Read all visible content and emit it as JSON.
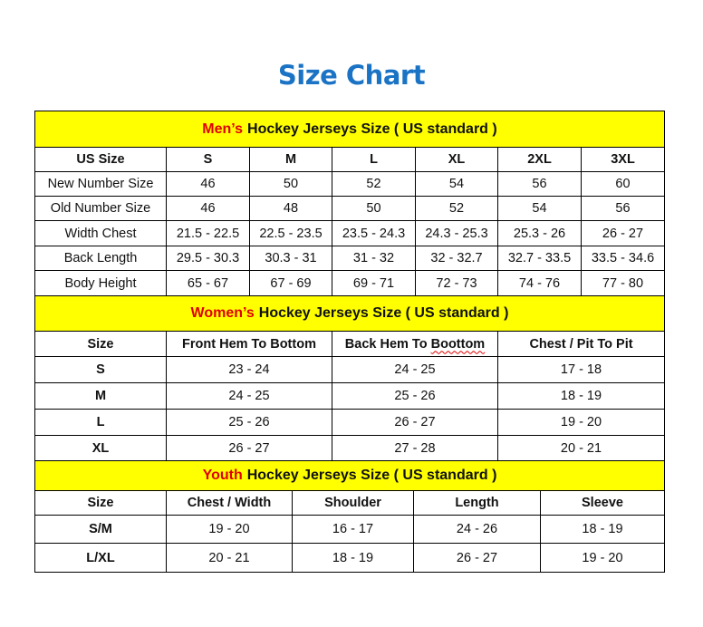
{
  "title": "Size Chart",
  "colors": {
    "title": "#1a73c4",
    "band": "#ffff00",
    "highlight": "#e00000"
  },
  "sections": [
    {
      "key": "men",
      "highlight": "Men’s",
      "heading": "Hockey Jerseys Size ( US standard )",
      "headers": [
        "US Size",
        "S",
        "M",
        "L",
        "XL",
        "2XL",
        "3XL"
      ],
      "rows": [
        [
          "New Number Size",
          "46",
          "50",
          "52",
          "54",
          "56",
          "60"
        ],
        [
          "Old Number Size",
          "46",
          "48",
          "50",
          "52",
          "54",
          "56"
        ],
        [
          "Width Chest",
          "21.5 - 22.5",
          "22.5 - 23.5",
          "23.5 - 24.3",
          "24.3 - 25.3",
          "25.3 - 26",
          "26 - 27"
        ],
        [
          "Back Length",
          "29.5 - 30.3",
          "30.3 - 31",
          "31 - 32",
          "32 - 32.7",
          "32.7 - 33.5",
          "33.5 - 34.6"
        ],
        [
          "Body Height",
          "65 - 67",
          "67 - 69",
          "69 - 71",
          "72 - 73",
          "74 - 76",
          "77 - 80"
        ]
      ]
    },
    {
      "key": "women",
      "highlight": "Women’s",
      "heading": "Hockey Jerseys Size ( US standard )",
      "headers": [
        "Size",
        "Front Hem To Bottom",
        "Back Hem To Boottom",
        "Chest / Pit To Pit"
      ],
      "rows": [
        [
          "S",
          "23 - 24",
          "24 - 25",
          "17 - 18"
        ],
        [
          "M",
          "24 - 25",
          "25 - 26",
          "18 - 19"
        ],
        [
          "L",
          "25 - 26",
          "26 - 27",
          "19 - 20"
        ],
        [
          "XL",
          "26 - 27",
          "27 - 28",
          "20 - 21"
        ]
      ]
    },
    {
      "key": "youth",
      "highlight": "Youth",
      "heading": "Hockey Jerseys Size ( US standard )",
      "headers": [
        "Size",
        "Chest / Width",
        "Shoulder",
        "Length",
        "Sleeve"
      ],
      "rows": [
        [
          "S/M",
          "19 - 20",
          "16 - 17",
          "24 - 26",
          "18 - 19"
        ],
        [
          "L/XL",
          "20 - 21",
          "18 - 19",
          "26 - 27",
          "19 - 20"
        ]
      ]
    }
  ]
}
